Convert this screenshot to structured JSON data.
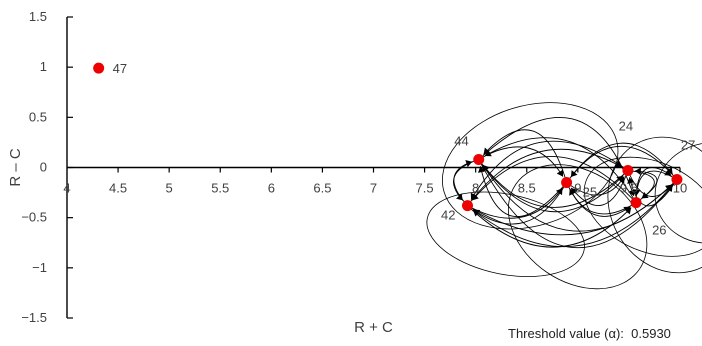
{
  "chart_data": {
    "type": "scatter",
    "title": "",
    "xlabel": "R + C",
    "ylabel": "R – C",
    "xlim": [
      4,
      10
    ],
    "ylim": [
      -1.5,
      1.5
    ],
    "x_ticks": [
      "4",
      "4.5",
      "5",
      "5.5",
      "6",
      "6.5",
      "7",
      "7.5",
      "8",
      "8.5",
      "9",
      "9.5",
      "10"
    ],
    "x_tick_values": [
      4,
      4.5,
      5,
      5.5,
      6,
      6.5,
      7,
      7.5,
      8,
      8.5,
      9,
      9.5,
      10
    ],
    "y_ticks": [
      "1.5",
      "1",
      "0.5",
      "0",
      "−0.5",
      "−1",
      "−1.5"
    ],
    "y_tick_values": [
      1.5,
      1,
      0.5,
      0,
      -0.5,
      -1,
      -1.5
    ],
    "grid": false,
    "legend": "none",
    "point_color": "#ee0000",
    "points": [
      {
        "label": "47",
        "x": 4.31,
        "y": 0.99
      },
      {
        "label": "44",
        "x": 8.03,
        "y": 0.08
      },
      {
        "label": "25",
        "x": 8.89,
        "y": -0.15
      },
      {
        "label": "24",
        "x": 9.49,
        "y": -0.03
      },
      {
        "label": "27",
        "x": 9.97,
        "y": -0.12
      },
      {
        "label": "26",
        "x": 9.57,
        "y": -0.35
      },
      {
        "label": "42",
        "x": 7.92,
        "y": -0.38
      }
    ]
  },
  "threshold": {
    "label": "Threshold value (α):",
    "value": "0.5930"
  }
}
